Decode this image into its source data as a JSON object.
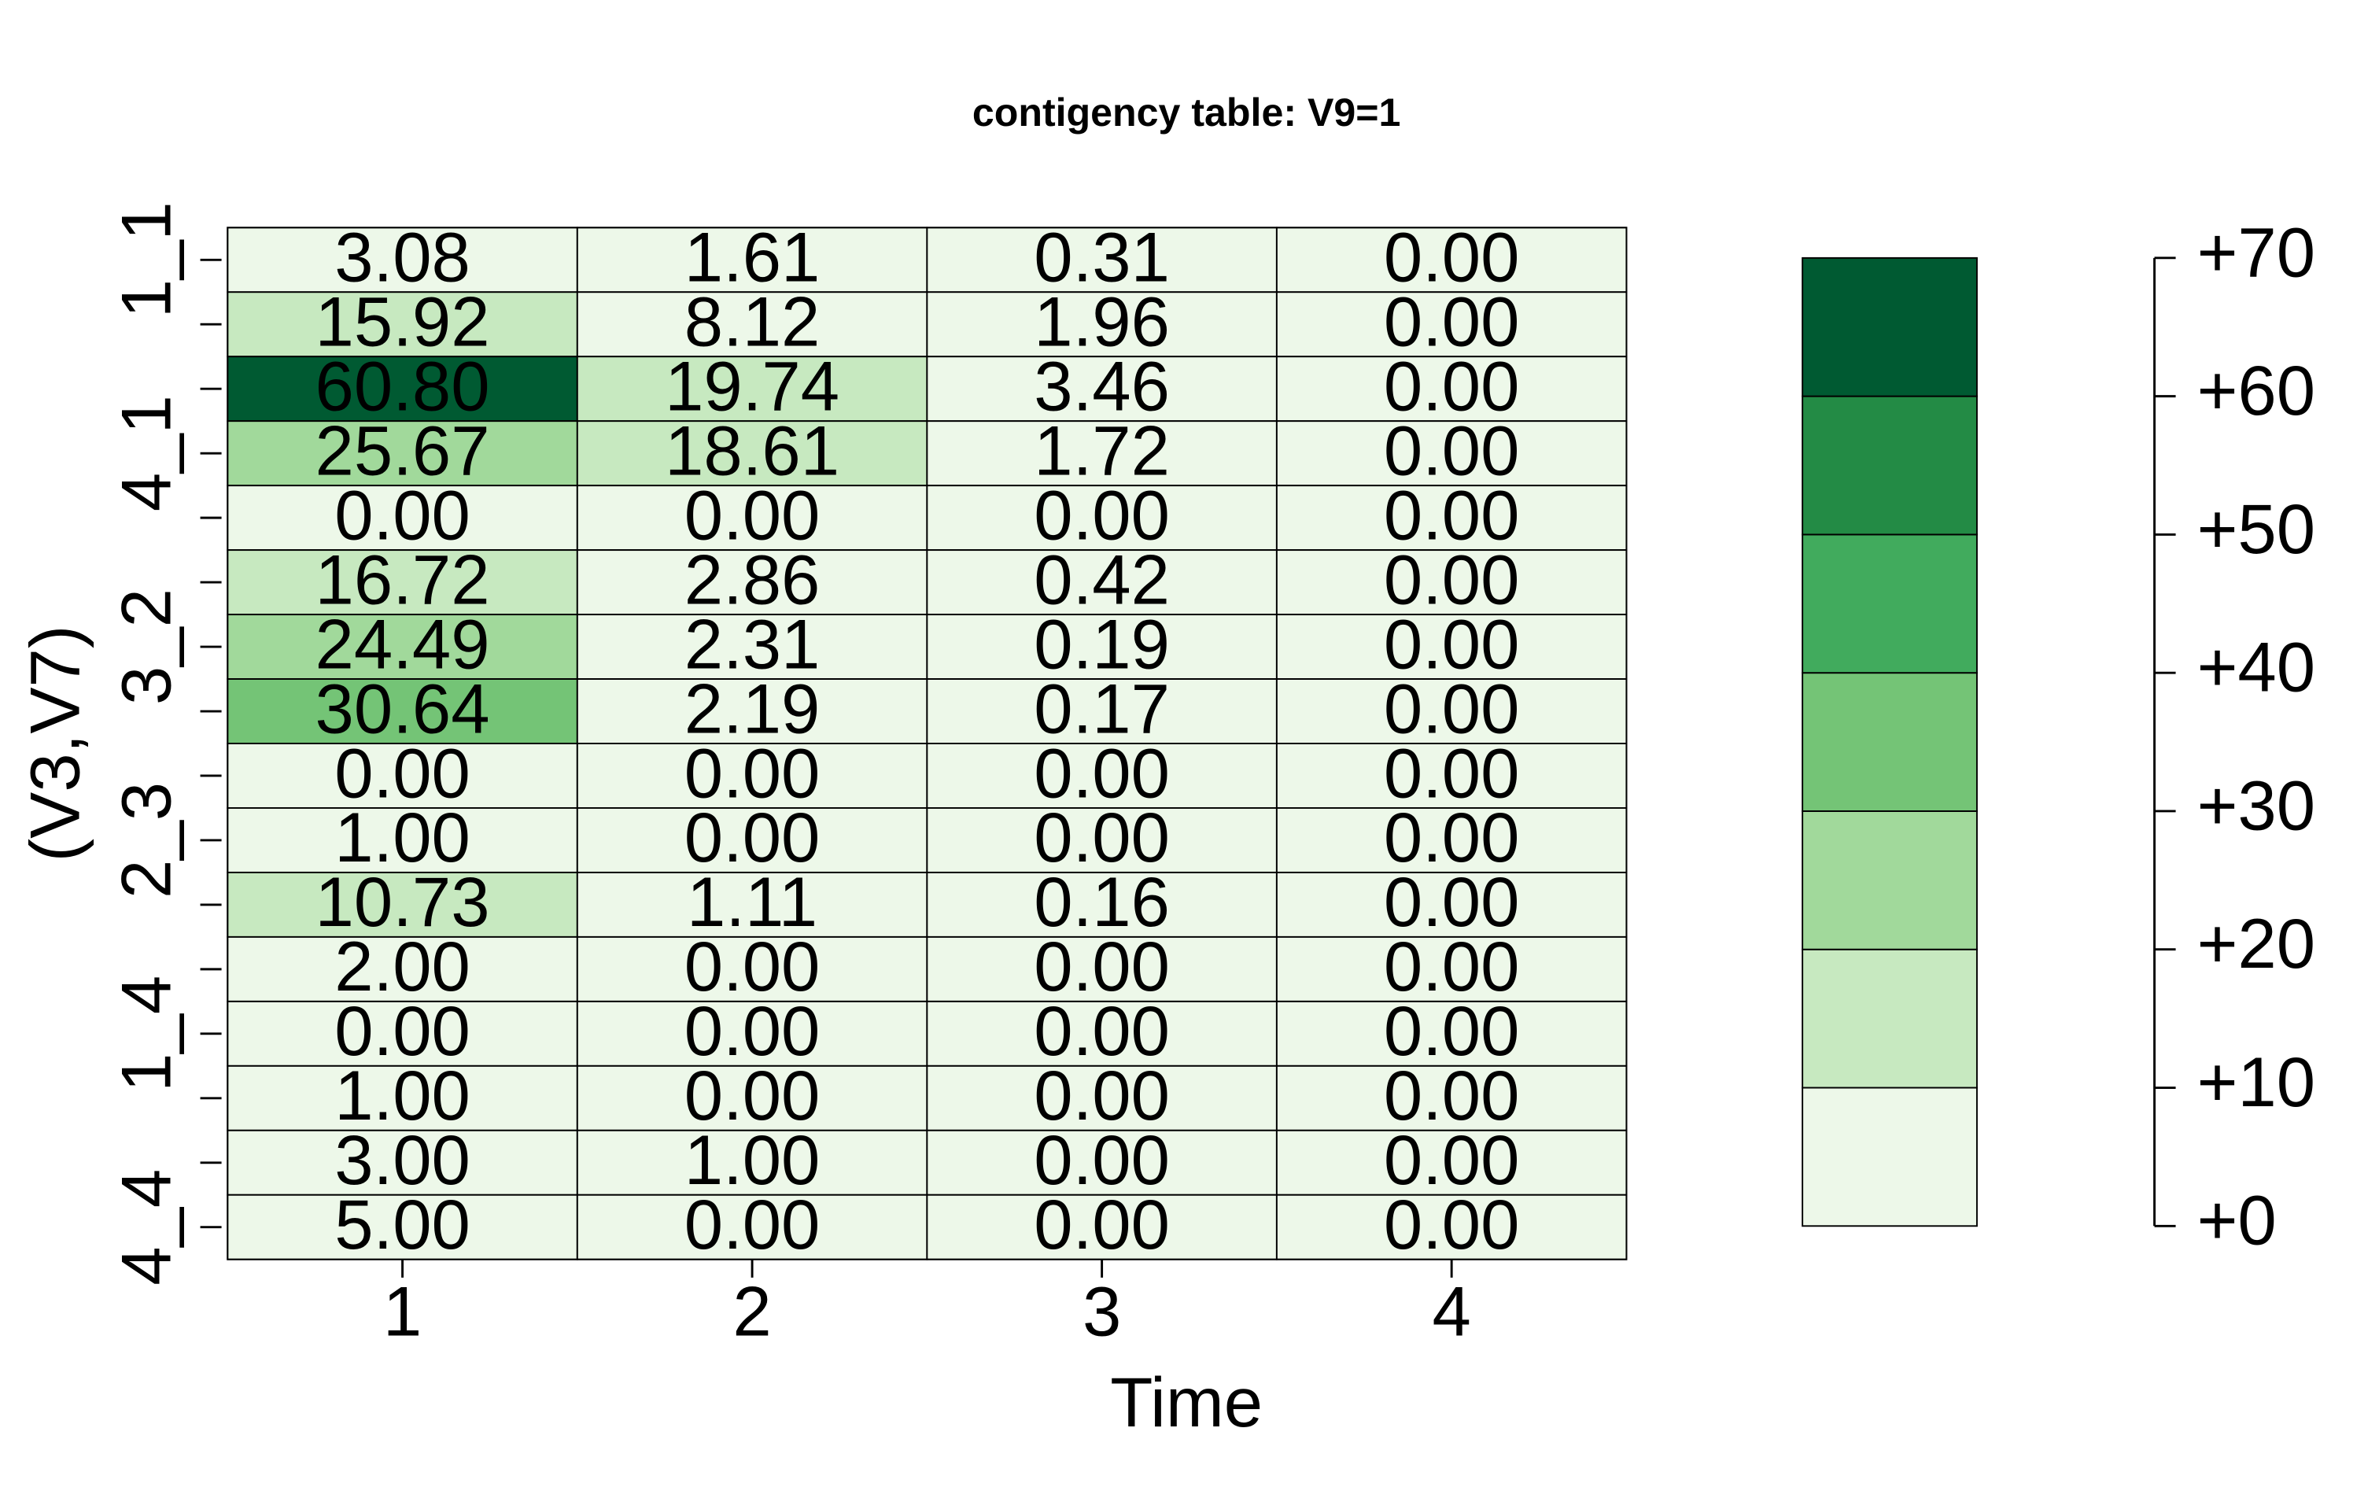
{
  "chart_data": {
    "type": "heatmap",
    "title": "contigency table: V9=1",
    "x_label": "Time",
    "y_label": "(V3,V7)",
    "categories": [
      "1",
      "2",
      "3",
      "4"
    ],
    "rows": [
      "1_1",
      null,
      null,
      "4_1",
      null,
      null,
      "3_2",
      null,
      null,
      "2_3",
      null,
      null,
      "1_4",
      null,
      null,
      "4_4"
    ],
    "values": [
      [
        3.08,
        1.61,
        0.31,
        0
      ],
      [
        15.92,
        8.12,
        1.96,
        0
      ],
      [
        60.8,
        19.74,
        3.46,
        0
      ],
      [
        25.67,
        18.61,
        1.72,
        0
      ],
      [
        0,
        0,
        0,
        0
      ],
      [
        16.72,
        2.86,
        0.42,
        0
      ],
      [
        24.49,
        2.31,
        0.19,
        0
      ],
      [
        30.64,
        2.19,
        0.17,
        0
      ],
      [
        0,
        0,
        0,
        0
      ],
      [
        1,
        0,
        0,
        0
      ],
      [
        10.73,
        1.11,
        0.16,
        0
      ],
      [
        2,
        0,
        0,
        0
      ],
      [
        0,
        0,
        0,
        0
      ],
      [
        1,
        0,
        0,
        0
      ],
      [
        3,
        1,
        0,
        0
      ],
      [
        5,
        0,
        0,
        0
      ]
    ],
    "value_labels": [
      [
        "3.08",
        "1.61",
        "0.31",
        "0.00"
      ],
      [
        "15.92",
        "8.12",
        "1.96",
        "0.00"
      ],
      [
        "60.80",
        "19.74",
        "3.46",
        "0.00"
      ],
      [
        "25.67",
        "18.61",
        "1.72",
        "0.00"
      ],
      [
        "0.00",
        "0.00",
        "0.00",
        "0.00"
      ],
      [
        "16.72",
        "2.86",
        "0.42",
        "0.00"
      ],
      [
        "24.49",
        "2.31",
        "0.19",
        "0.00"
      ],
      [
        "30.64",
        "2.19",
        "0.17",
        "0.00"
      ],
      [
        "0.00",
        "0.00",
        "0.00",
        "0.00"
      ],
      [
        "1.00",
        "0.00",
        "0.00",
        "0.00"
      ],
      [
        "10.73",
        "1.11",
        "0.16",
        "0.00"
      ],
      [
        "2.00",
        "0.00",
        "0.00",
        "0.00"
      ],
      [
        "0.00",
        "0.00",
        "0.00",
        "0.00"
      ],
      [
        "1.00",
        "0.00",
        "0.00",
        "0.00"
      ],
      [
        "3.00",
        "1.00",
        "0.00",
        "0.00"
      ],
      [
        "5.00",
        "0.00",
        "0.00",
        "0.00"
      ]
    ],
    "colors": [
      "#edf8e9",
      "#c7e9c0",
      "#a1d99b",
      "#74c476",
      "#41ab5d",
      "#238b45",
      "#005a32"
    ],
    "zlim": [
      0,
      70
    ],
    "zticks": [
      {
        "value": 0,
        "label": "+0"
      },
      {
        "value": 10,
        "label": "+10"
      },
      {
        "value": 20,
        "label": "+20"
      },
      {
        "value": 30,
        "label": "+30"
      },
      {
        "value": 40,
        "label": "+40"
      },
      {
        "value": 50,
        "label": "+50"
      },
      {
        "value": 60,
        "label": "+60"
      },
      {
        "value": 70,
        "label": "+70"
      }
    ]
  }
}
